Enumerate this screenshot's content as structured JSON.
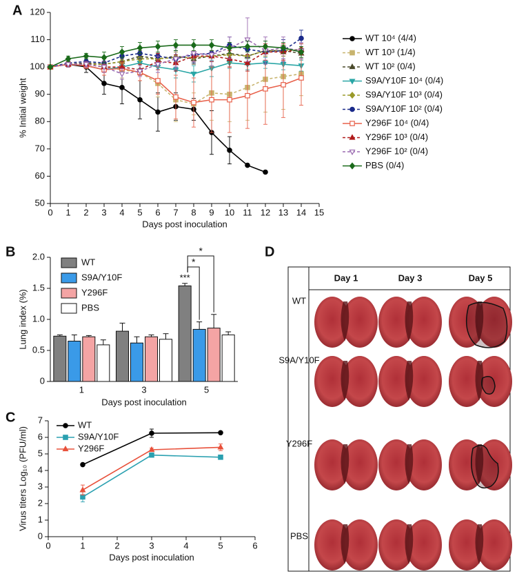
{
  "chart_data": [
    {
      "type": "line",
      "panel_label": "A",
      "x_label": "Days post inoculation",
      "y_label": "% Initial weight",
      "x": [
        0,
        1,
        2,
        3,
        4,
        5,
        6,
        7,
        8,
        9,
        10,
        11,
        12,
        13,
        14
      ],
      "xlim": [
        0,
        15
      ],
      "xticks": [
        0,
        1,
        2,
        3,
        4,
        5,
        6,
        7,
        8,
        9,
        10,
        11,
        12,
        13,
        14,
        15
      ],
      "ylim": [
        50,
        120
      ],
      "yticks": [
        50,
        60,
        70,
        80,
        90,
        100,
        110,
        120
      ],
      "series": [
        {
          "name": "WT 10⁴ (4/4)",
          "color": "#000000",
          "marker": "circle",
          "open": false,
          "dashed": false,
          "values": [
            100,
            101,
            100,
            94,
            92.5,
            88,
            83.5,
            85.5,
            84.5,
            76,
            69.5,
            64,
            61.5,
            null,
            null
          ],
          "errors": [
            0,
            1,
            2,
            4,
            6,
            7,
            7,
            5,
            4,
            8,
            5,
            0,
            0,
            null,
            null
          ]
        },
        {
          "name": "WT 10³ (1/4)",
          "color": "#c8b46e",
          "marker": "square",
          "open": false,
          "dashed": true,
          "values": [
            100,
            101,
            101,
            100,
            99,
            98,
            94,
            88,
            86.5,
            90.5,
            90,
            92.5,
            95.5,
            96.5,
            97.5
          ],
          "errors": [
            0,
            1,
            1,
            2,
            3,
            3,
            5,
            8,
            4,
            10,
            10,
            12,
            12,
            12,
            8
          ]
        },
        {
          "name": "WT 10² (0/4)",
          "color": "#4a4a2a",
          "marker": "triangle",
          "open": false,
          "dashed": true,
          "values": [
            100,
            101,
            101.5,
            101,
            102,
            104,
            103,
            104,
            103,
            104,
            105,
            104,
            106,
            106,
            105
          ],
          "errors": [
            0,
            1,
            1,
            2,
            1,
            2,
            2,
            2,
            2,
            2,
            3,
            3,
            2,
            2,
            2
          ]
        },
        {
          "name": "S9A/Y10F 10⁴ (0/4)",
          "color": "#2aa6a6",
          "marker": "triangle-down",
          "open": false,
          "dashed": false,
          "values": [
            100,
            101,
            100.5,
            99,
            100,
            101.5,
            100,
            99,
            97.5,
            99.5,
            101.5,
            101,
            101.5,
            101,
            100.5
          ],
          "errors": [
            0,
            1,
            1,
            1,
            2,
            2,
            2,
            3,
            3,
            3,
            2,
            2,
            2,
            2,
            2
          ]
        },
        {
          "name": "S9A/Y10F 10³ (0/4)",
          "color": "#9a9a2a",
          "marker": "diamond",
          "open": false,
          "dashed": true,
          "values": [
            100,
            101,
            101,
            101,
            102,
            103,
            103,
            103.5,
            103.5,
            104,
            104.5,
            104,
            106,
            106,
            106.5
          ],
          "errors": [
            0,
            1,
            1,
            2,
            2,
            2,
            2,
            2,
            2,
            2,
            3,
            3,
            2,
            2,
            2
          ]
        },
        {
          "name": "S9A/Y10F 10² (0/4)",
          "color": "#1a2a8a",
          "marker": "circle",
          "open": false,
          "dashed": true,
          "values": [
            100,
            101.5,
            102,
            101.5,
            104,
            105,
            104,
            103,
            104.5,
            105,
            108,
            106.5,
            105.5,
            106,
            110.5
          ],
          "errors": [
            0,
            1,
            1,
            2,
            2,
            2,
            3,
            3,
            3,
            3,
            3,
            3,
            4,
            4,
            3
          ]
        },
        {
          "name": "Y296F 10⁴ (0/4)",
          "color": "#e8604a",
          "marker": "square",
          "open": true,
          "dashed": false,
          "values": [
            100,
            101,
            100.5,
            99,
            99.5,
            98,
            95,
            89,
            87,
            88,
            88,
            89.5,
            92,
            93.5,
            96
          ],
          "errors": [
            0,
            1,
            1,
            2,
            2,
            3,
            5,
            8,
            9,
            12,
            12,
            12,
            13,
            12,
            10
          ]
        },
        {
          "name": "Y296F 10³ (0/4)",
          "color": "#b01a1a",
          "marker": "triangle",
          "open": false,
          "dashed": true,
          "values": [
            100,
            101,
            101,
            100,
            100,
            99,
            102,
            101.5,
            104,
            104,
            103,
            101.5,
            105.5,
            105.5,
            106.5
          ],
          "errors": [
            0,
            1,
            1,
            2,
            2,
            2,
            3,
            3,
            2,
            2,
            3,
            3,
            3,
            3,
            2
          ]
        },
        {
          "name": "Y296F 10² (0/4)",
          "color": "#9a6ab0",
          "marker": "triangle-down",
          "open": true,
          "dashed": true,
          "values": [
            100,
            101,
            101,
            100,
            97.5,
            98.5,
            101,
            103,
            105,
            104.5,
            107,
            110,
            106,
            107,
            106
          ],
          "errors": [
            0,
            1,
            1,
            2,
            2,
            2,
            3,
            4,
            3,
            4,
            4,
            8,
            5,
            4,
            3
          ]
        },
        {
          "name": "PBS (0/4)",
          "color": "#1a6a1a",
          "marker": "diamond",
          "open": false,
          "dashed": false,
          "values": [
            100,
            103,
            104,
            103.5,
            105.5,
            107,
            107.5,
            108,
            108,
            108,
            107,
            107.5,
            107.5,
            107,
            105.5
          ],
          "errors": [
            0,
            1,
            1,
            2,
            2,
            2,
            2,
            2,
            2,
            2,
            2,
            2,
            2,
            2,
            2
          ]
        }
      ]
    },
    {
      "type": "bar",
      "panel_label": "B",
      "x_label": "Days post inoculation",
      "y_label": "Lung index (%)",
      "categories": [
        "1",
        "3",
        "5"
      ],
      "ylim": [
        0,
        2
      ],
      "yticks": [
        0,
        0.5,
        {
          "value": 1,
          "label": "1.0"
        },
        1.5,
        {
          "value": 2,
          "label": "2.0"
        }
      ],
      "series": [
        {
          "name": "WT",
          "color": "#808080",
          "values": [
            0.73,
            0.81,
            1.54
          ],
          "errors": [
            0.02,
            0.13,
            0.04
          ]
        },
        {
          "name": "S9A/Y10F",
          "color": "#3a9ae8",
          "values": [
            0.65,
            0.62,
            0.84
          ],
          "errors": [
            0.1,
            0.1,
            0.12
          ]
        },
        {
          "name": "Y296F",
          "color": "#f4a4a4",
          "values": [
            0.72,
            0.72,
            0.86
          ],
          "errors": [
            0.02,
            0.03,
            0.22
          ]
        },
        {
          "name": "PBS",
          "color": "#ffffff",
          "values": [
            0.59,
            0.68,
            0.75
          ],
          "errors": [
            0.08,
            0.09,
            0.05
          ]
        }
      ],
      "annotations": [
        "***",
        "*",
        "*"
      ]
    },
    {
      "type": "line",
      "panel_label": "C",
      "x_label": "Days post inoculation",
      "y_label": "Virus titers Log₁₀ (PFU/ml)",
      "x": [
        1,
        3,
        5
      ],
      "xlim": [
        0,
        6
      ],
      "xticks": [
        0,
        1,
        2,
        3,
        4,
        5,
        6
      ],
      "ylim": [
        0,
        7
      ],
      "yticks": [
        0,
        1,
        2,
        3,
        4,
        5,
        6,
        7
      ],
      "legend": "upper left",
      "series": [
        {
          "name": "WT",
          "color": "#000000",
          "marker": "circle",
          "open": false,
          "dashed": false,
          "values": [
            4.35,
            6.25,
            6.28
          ],
          "errors": [
            0.05,
            0.25,
            0.07
          ]
        },
        {
          "name": "S9A/Y10F",
          "color": "#2aa0b0",
          "marker": "square",
          "open": false,
          "dashed": false,
          "values": [
            2.4,
            4.93,
            4.8
          ],
          "errors": [
            0.3,
            0.05,
            0.1
          ]
        },
        {
          "name": "Y296F",
          "color": "#e8503a",
          "marker": "triangle",
          "open": false,
          "dashed": false,
          "values": [
            2.82,
            5.25,
            5.4
          ],
          "errors": [
            0.3,
            0.1,
            0.2
          ]
        }
      ]
    }
  ],
  "panel_d": {
    "panel_label": "D",
    "columns": [
      "Day 1",
      "Day 3",
      "Day 5"
    ],
    "rows": [
      "WT",
      "S9A/Y10F",
      "Y296F",
      "PBS"
    ]
  }
}
